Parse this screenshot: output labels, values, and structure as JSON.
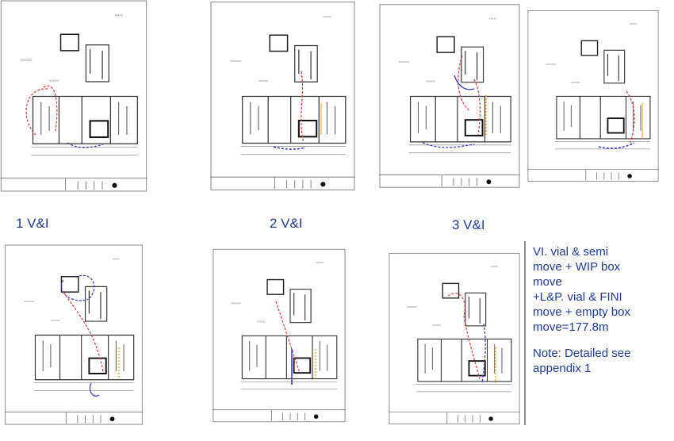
{
  "plans": [
    {
      "label": "1  V&I"
    },
    {
      "label": "2  V&I"
    },
    {
      "label": "3  V&I"
    }
  ],
  "summary": {
    "lines": [
      "VI. vial & semi",
      "move + WIP box",
      "move",
      "+L&P. vial & FINI",
      "move + empty box",
      "move=177.8m"
    ]
  },
  "note": {
    "lines": [
      "Note: Detailed see",
      "appendix 1"
    ]
  }
}
